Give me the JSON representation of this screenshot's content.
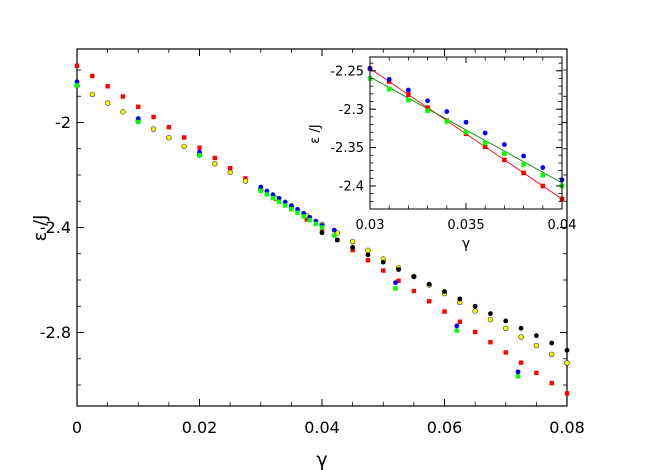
{
  "chart_data": [
    {
      "type": "scatter",
      "xlabel": "γ",
      "ylabel": "ε /J",
      "xlim": [
        0,
        0.08
      ],
      "ylim": [
        -3.08,
        -1.72
      ],
      "xticks": [
        "0",
        "0.02",
        "0.04",
        "0.06",
        "0.08"
      ],
      "yticks": [
        "-2",
        "-2.4",
        "-2.8"
      ],
      "grid": false,
      "series": [
        {
          "color": "#ff0000",
          "marker": "square",
          "x": [
            0,
            0.0025,
            0.005,
            0.0075,
            0.01,
            0.0125,
            0.015,
            0.0175,
            0.02,
            0.0225,
            0.025,
            0.0275,
            0.03,
            0.0325,
            0.035,
            0.0375,
            0.04,
            0.0425,
            0.045,
            0.0475,
            0.05,
            0.0525,
            0.055,
            0.0575,
            0.06,
            0.0625,
            0.065,
            0.0675,
            0.07,
            0.0725,
            0.075,
            0.0775,
            0.08
          ],
          "y": [
            -1.784,
            -1.823,
            -1.862,
            -1.901,
            -1.94,
            -1.979,
            -2.018,
            -2.057,
            -2.096,
            -2.135,
            -2.174,
            -2.213,
            -2.252,
            -2.291,
            -2.33,
            -2.369,
            -2.408,
            -2.447,
            -2.486,
            -2.525,
            -2.564,
            -2.603,
            -2.642,
            -2.681,
            -2.72,
            -2.759,
            -2.798,
            -2.837,
            -2.876,
            -2.915,
            -2.954,
            -2.993,
            -3.032
          ]
        },
        {
          "color": "#ffff00",
          "marker": "circle-outlined",
          "x": [
            0,
            0.0025,
            0.005,
            0.0075,
            0.01,
            0.0125,
            0.015,
            0.0175,
            0.02,
            0.0225,
            0.025,
            0.0275,
            0.03,
            0.0325,
            0.035,
            0.0375,
            0.04,
            0.0425,
            0.045,
            0.0475,
            0.05,
            0.0525,
            0.055,
            0.0575,
            0.06,
            0.0625,
            0.065,
            0.0675,
            0.07,
            0.0725,
            0.075,
            0.0775,
            0.08
          ],
          "y": [
            -1.86,
            -1.893,
            -1.926,
            -1.959,
            -1.992,
            -2.025,
            -2.058,
            -2.091,
            -2.124,
            -2.157,
            -2.19,
            -2.223,
            -2.256,
            -2.289,
            -2.322,
            -2.355,
            -2.388,
            -2.421,
            -2.454,
            -2.487,
            -2.52,
            -2.553,
            -2.586,
            -2.619,
            -2.652,
            -2.685,
            -2.718,
            -2.751,
            -2.784,
            -2.817,
            -2.85,
            -2.883,
            -2.916
          ]
        },
        {
          "color": "#000000",
          "marker": "circle",
          "x": [
            0.04,
            0.0425,
            0.045,
            0.0475,
            0.05,
            0.0525,
            0.055,
            0.0575,
            0.06,
            0.0625,
            0.065,
            0.0675,
            0.07,
            0.0725,
            0.075,
            0.0775,
            0.08
          ],
          "y": [
            -2.42,
            -2.448,
            -2.476,
            -2.504,
            -2.532,
            -2.56,
            -2.588,
            -2.616,
            -2.644,
            -2.672,
            -2.7,
            -2.728,
            -2.756,
            -2.784,
            -2.812,
            -2.84,
            -2.868
          ]
        },
        {
          "color": "#0000ff",
          "marker": "circle",
          "x": [
            0,
            0.01,
            0.02,
            0.03,
            0.031,
            0.032,
            0.033,
            0.034,
            0.035,
            0.036,
            0.037,
            0.038,
            0.039,
            0.04,
            0.042,
            0.052,
            0.062,
            0.072
          ],
          "y": [
            -1.845,
            -1.985,
            -2.113,
            -2.246,
            -2.261,
            -2.275,
            -2.289,
            -2.303,
            -2.317,
            -2.331,
            -2.346,
            -2.361,
            -2.376,
            -2.392,
            -2.41,
            -2.61,
            -2.775,
            -2.95
          ]
        },
        {
          "color": "#00ff00",
          "marker": "square",
          "x": [
            0,
            0.01,
            0.02,
            0.03,
            0.031,
            0.032,
            0.033,
            0.034,
            0.035,
            0.036,
            0.037,
            0.038,
            0.039,
            0.04,
            0.042,
            0.052,
            0.062,
            0.072
          ],
          "y": [
            -1.858,
            -1.998,
            -2.125,
            -2.26,
            -2.274,
            -2.288,
            -2.302,
            -2.316,
            -2.33,
            -2.344,
            -2.358,
            -2.372,
            -2.386,
            -2.4,
            -2.43,
            -2.632,
            -2.793,
            -2.967
          ]
        }
      ]
    },
    {
      "type": "scatter",
      "xlabel": "γ",
      "ylabel": "ε /J",
      "xlim": [
        0.03,
        0.04
      ],
      "ylim": [
        -2.43,
        -2.232
      ],
      "xticks": [
        "0.03",
        "0.035",
        "0.04"
      ],
      "yticks": [
        "-2.25",
        "-2.3",
        "-2.35",
        "-2.4"
      ],
      "grid": false,
      "series": [
        {
          "color": "#ff0000",
          "marker": "square",
          "x": [
            0.03,
            0.031,
            0.032,
            0.033,
            0.034,
            0.035,
            0.036,
            0.037,
            0.038,
            0.039,
            0.04
          ],
          "y": [
            -2.247,
            -2.264,
            -2.281,
            -2.298,
            -2.315,
            -2.332,
            -2.349,
            -2.366,
            -2.383,
            -2.4,
            -2.417
          ]
        },
        {
          "color": "#0000ff",
          "marker": "circle",
          "x": [
            0.03,
            0.031,
            0.032,
            0.033,
            0.034,
            0.035,
            0.036,
            0.037,
            0.038,
            0.039,
            0.04
          ],
          "y": [
            -2.247,
            -2.261,
            -2.275,
            -2.289,
            -2.303,
            -2.317,
            -2.331,
            -2.346,
            -2.361,
            -2.376,
            -2.392
          ]
        },
        {
          "color": "#00ff00",
          "marker": "square",
          "x": [
            0.03,
            0.031,
            0.032,
            0.033,
            0.034,
            0.035,
            0.036,
            0.037,
            0.038,
            0.039,
            0.04
          ],
          "y": [
            -2.26,
            -2.274,
            -2.288,
            -2.302,
            -2.316,
            -2.33,
            -2.344,
            -2.358,
            -2.372,
            -2.386,
            -2.4
          ]
        }
      ],
      "lines": [
        {
          "color": "#ff0000",
          "x": [
            0.03,
            0.04
          ],
          "y": [
            -2.247,
            -2.417
          ]
        },
        {
          "color": "#008000",
          "x": [
            0.03,
            0.04
          ],
          "y": [
            -2.258,
            -2.396
          ]
        }
      ]
    }
  ]
}
